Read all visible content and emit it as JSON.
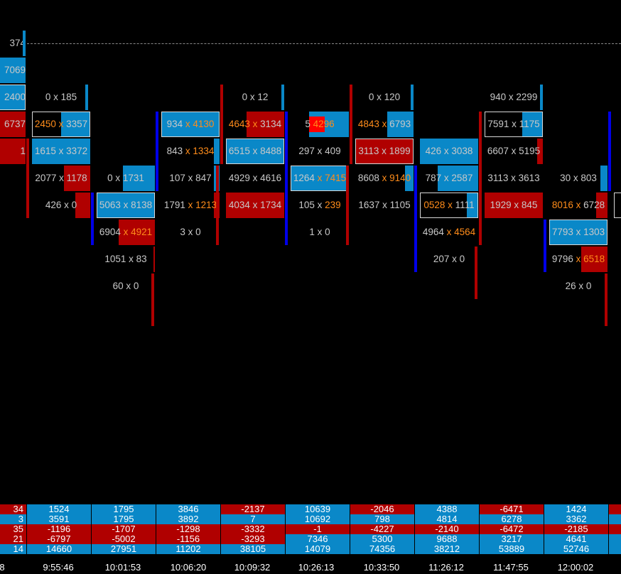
{
  "chart": {
    "colors": {
      "ask": "#0a88c8",
      "bid": "#b00000",
      "poc_dark": "#0000e8",
      "highlight": "#ff8c1a",
      "text": "#c8c8c8"
    },
    "price_line_label": "374",
    "columns": [
      {
        "rows": [
          {
            "label": "374",
            "bars": []
          },
          {
            "label": "7069",
            "bars": [
              {
                "color": "ask",
                "value": 1
              }
            ]
          },
          {
            "label": "2400",
            "frame": true,
            "bars": [
              {
                "color": "ask",
                "value": 1
              }
            ]
          },
          {
            "label": "6737",
            "bars": [
              {
                "color": "bid",
                "value": 1
              }
            ]
          },
          {
            "label": "1",
            "bars": [
              {
                "color": "bid",
                "value": 1
              }
            ]
          }
        ]
      },
      {
        "rows": [
          {
            "label": "0 x 185",
            "bars": []
          },
          {
            "label": "2450 x 3357",
            "orange": "2450 x",
            "frame": true,
            "bars": [
              {
                "color": "ask",
                "value": 0.5
              }
            ]
          },
          {
            "label": "1615 x 3372",
            "bars": [
              {
                "color": "ask",
                "value": 1
              }
            ]
          },
          {
            "label": "2077 x 1178",
            "bars": [
              {
                "color": "bid",
                "value": 0.45
              }
            ]
          },
          {
            "label": "426 x 0",
            "bars": [
              {
                "color": "bid",
                "value": 0.25
              }
            ]
          }
        ]
      },
      {
        "rows": [
          {
            "label": "0 x 1731",
            "bars": [
              {
                "color": "ask",
                "value": 0.55
              }
            ]
          },
          {
            "label": "5063 x 8138",
            "frame": true,
            "bars": [
              {
                "color": "ask",
                "value": 1
              }
            ]
          },
          {
            "label": "6904 x 4921",
            "orange": "x 4921",
            "bars": [
              {
                "color": "bid",
                "value": 0.62
              }
            ]
          },
          {
            "label": "1051 x 83",
            "bars": [
              {
                "color": "bid",
                "value": 0.02
              }
            ]
          },
          {
            "label": "60 x 0",
            "bars": []
          }
        ]
      },
      {
        "rows": [
          {
            "label": "934 x 4130",
            "orange": "x 4130",
            "frame": true,
            "bars": [
              {
                "color": "ask",
                "value": 1
              }
            ]
          },
          {
            "label": "843 x 1334",
            "orange": "x 1334",
            "bars": [
              {
                "color": "ask",
                "value": 0.1
              }
            ]
          },
          {
            "label": "107 x 847",
            "bars": [
              {
                "color": "ask",
                "value": 0.1
              }
            ]
          },
          {
            "label": "1791 x 1213",
            "orange": "x 1213",
            "bars": [
              {
                "color": "bid",
                "value": 0.1
              }
            ]
          },
          {
            "label": "3 x 0",
            "bars": []
          }
        ]
      },
      {
        "rows": [
          {
            "label": "0 x 12",
            "bars": []
          },
          {
            "label": "4643 x 3134",
            "orange": "4643 x",
            "bars": [
              {
                "color": "bid",
                "value": 0.65
              }
            ]
          },
          {
            "label": "6515 x 8488",
            "frame": true,
            "bars": [
              {
                "color": "ask",
                "value": 1
              }
            ]
          },
          {
            "label": "4929 x 4616",
            "bars": []
          },
          {
            "label": "4034 x 1734",
            "bars": [
              {
                "color": "bid",
                "value": 1
              }
            ]
          }
        ]
      },
      {
        "rows": [
          {
            "label": "5 4296",
            "orange": "4296",
            "marker": true,
            "bars": [
              {
                "color": "ask",
                "value": 0.68
              }
            ]
          },
          {
            "label": "297 x 409",
            "bars": []
          },
          {
            "label": "1264 x 7415",
            "orange": "x 7415",
            "frame": true,
            "bars": [
              {
                "color": "ask",
                "value": 1
              }
            ]
          },
          {
            "label": "105 x 239",
            "orange": "239",
            "bars": []
          },
          {
            "label": "1 x 0",
            "bars": []
          }
        ]
      },
      {
        "rows": [
          {
            "label": "0 x 120",
            "bars": []
          },
          {
            "label": "4843 x 6793",
            "orange": "4843 x",
            "bars": [
              {
                "color": "ask",
                "value": 0.45
              }
            ]
          },
          {
            "label": "3113 x 1899",
            "frame": true,
            "bars": [
              {
                "color": "bid",
                "value": 1
              }
            ]
          },
          {
            "label": "8608 x 9140",
            "orange": "x 9140",
            "bars": [
              {
                "color": "ask",
                "value": 0.15
              }
            ]
          },
          {
            "label": "1637 x 1105",
            "bars": []
          }
        ]
      },
      {
        "rows": [
          {
            "label": "426 x 3038",
            "bars": [
              {
                "color": "ask",
                "value": 1
              }
            ]
          },
          {
            "label": "787 x 2587",
            "bars": [
              {
                "color": "ask",
                "value": 0.7
              }
            ]
          },
          {
            "label": "0528 x 1111",
            "orange": "0528 x",
            "frame": true,
            "bars": [
              {
                "color": "ask",
                "value": 0.2
              }
            ]
          },
          {
            "label": "4964 x 4564",
            "orange": "x 4564",
            "bars": []
          },
          {
            "label": "207 x 0",
            "bars": []
          }
        ]
      },
      {
        "rows": [
          {
            "label": "940 x 2299",
            "bars": []
          },
          {
            "label": "7591 x 1175",
            "frame": true,
            "bars": [
              {
                "color": "ask",
                "value": 0.35
              }
            ]
          },
          {
            "label": "6607 x 5195",
            "bars": [
              {
                "color": "bid",
                "value": 0.1
              }
            ]
          },
          {
            "label": "3113 x 3613",
            "bars": []
          },
          {
            "label": "1929 x 845",
            "bars": [
              {
                "color": "bid",
                "value": 1
              }
            ]
          }
        ]
      },
      {
        "rows": [
          {
            "label": "30 x 803",
            "bars": [
              {
                "color": "ask",
                "value": 0.12
              }
            ]
          },
          {
            "label": "8016 x 6728",
            "orange": "8016 x",
            "bars": [
              {
                "color": "bid",
                "value": 0.2
              }
            ]
          },
          {
            "label": "7793 x 1303",
            "frame": true,
            "bars": [
              {
                "color": "ask",
                "value": 1
              }
            ]
          },
          {
            "label": "9796 x 6518",
            "orange": "x 6518",
            "bars": [
              {
                "color": "bid",
                "value": 0.45
              }
            ]
          },
          {
            "label": "26 x 0",
            "bars": []
          }
        ]
      },
      {
        "rows": [
          {
            "label": "",
            "bars": []
          },
          {
            "label": "",
            "bars": []
          },
          {
            "label": "2",
            "bars": []
          },
          {
            "label": "",
            "frame": true,
            "bars": []
          }
        ]
      }
    ]
  },
  "summary": {
    "rows": [
      {
        "values": [
          "34",
          "1524",
          "1795",
          "3846",
          "-2137",
          "10639",
          "-2046",
          "4388",
          "-6471",
          "1424",
          ""
        ],
        "colors": [
          "bid",
          "ask",
          "ask",
          "ask",
          "bid",
          "ask",
          "bid",
          "ask",
          "bid",
          "ask",
          "bid"
        ]
      },
      {
        "values": [
          "3",
          "3591",
          "1795",
          "3892",
          "7",
          "10692",
          "798",
          "4814",
          "6278",
          "3362",
          ""
        ],
        "colors": [
          "ask",
          "ask",
          "ask",
          "ask",
          "ask",
          "ask",
          "ask",
          "ask",
          "ask",
          "ask",
          "ask"
        ]
      },
      {
        "values": [
          "35",
          "-1196",
          "-1707",
          "-1298",
          "-3332",
          "-1",
          "-4227",
          "-2140",
          "-6472",
          "-2185",
          ""
        ],
        "colors": [
          "bid",
          "bid",
          "bid",
          "bid",
          "bid",
          "bid",
          "bid",
          "bid",
          "bid",
          "bid",
          "bid"
        ]
      },
      {
        "values": [
          "21",
          "-6797",
          "-5002",
          "-1156",
          "-3293",
          "7346",
          "5300",
          "9688",
          "3217",
          "4641",
          ""
        ],
        "colors": [
          "bid",
          "bid",
          "bid",
          "bid",
          "bid",
          "ask",
          "ask",
          "ask",
          "ask",
          "ask",
          "ask"
        ]
      },
      {
        "values": [
          "14",
          "14660",
          "27951",
          "11202",
          "38105",
          "14079",
          "74356",
          "38212",
          "53889",
          "52746",
          ""
        ],
        "colors": [
          "ask",
          "ask",
          "ask",
          "ask",
          "ask",
          "ask",
          "ask",
          "ask",
          "ask",
          "ask",
          "ask"
        ]
      }
    ]
  },
  "time_axis": {
    "labels": [
      "8",
      "9:55:46",
      "10:01:53",
      "10:06:20",
      "10:09:32",
      "10:26:13",
      "10:33:50",
      "11:26:12",
      "11:47:55",
      "12:00:02"
    ]
  }
}
